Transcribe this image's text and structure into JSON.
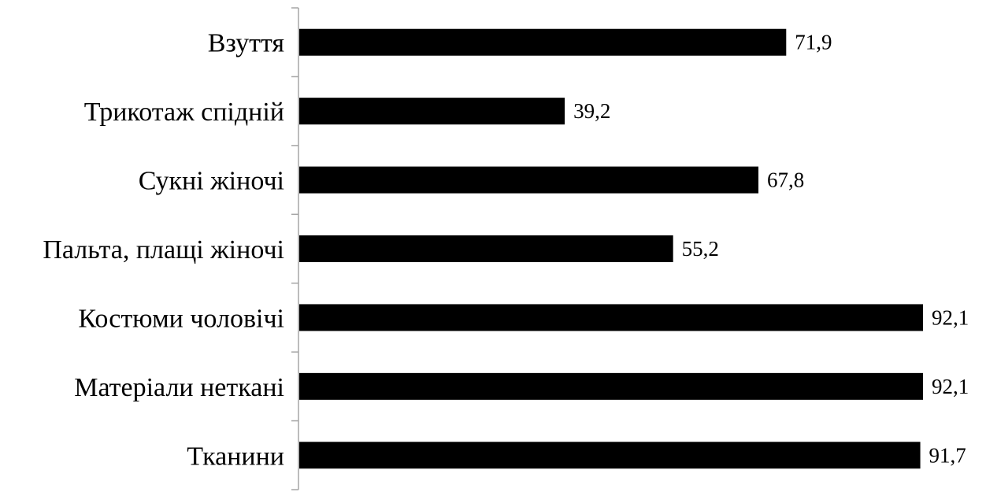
{
  "chart_data": {
    "type": "bar",
    "orientation": "horizontal",
    "categories": [
      "Взуття",
      "Трикотаж спідній",
      "Сукні жіночі",
      "Пальта, плащі жіночі",
      "Костюми чоловічі",
      "Матеріали неткані",
      "Тканини"
    ],
    "values": [
      71.9,
      39.2,
      67.8,
      55.2,
      92.1,
      92.1,
      91.7
    ],
    "value_labels": [
      "71,9",
      "39,2",
      "67,8",
      "55,2",
      "92,1",
      "92,1",
      "91,7"
    ],
    "xlim": [
      0,
      92.1
    ],
    "bar_color": "#000000",
    "axis_color": "#a6a6a6",
    "grid": false,
    "legend": "none"
  }
}
